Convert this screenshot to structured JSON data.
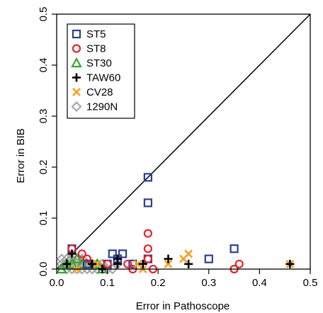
{
  "chart_data": {
    "type": "scatter",
    "xlabel": "Error in Pathoscope",
    "ylabel": "Error in BIB",
    "xlim": [
      0,
      0.5
    ],
    "ylim": [
      0,
      0.5
    ],
    "x_ticks": [
      "0.0",
      "0.1",
      "0.2",
      "0.3",
      "0.4",
      "0.5"
    ],
    "y_ticks": [
      "0.0",
      "0.1",
      "0.2",
      "0.3",
      "0.4",
      "0.5"
    ],
    "x_tick_values": [
      0,
      0.1,
      0.2,
      0.3,
      0.4,
      0.5
    ],
    "y_tick_values": [
      0,
      0.1,
      0.2,
      0.3,
      0.4,
      0.5
    ],
    "reference_line": {
      "from": [
        0,
        0
      ],
      "to": [
        0.5,
        0.5
      ]
    },
    "legend_position": "top-left",
    "grid": false,
    "series": [
      {
        "name": "ST5",
        "marker": "square",
        "color": "#2b3f95",
        "points": [
          [
            0.03,
            0.04
          ],
          [
            0.11,
            0.03
          ],
          [
            0.13,
            0.03
          ],
          [
            0.12,
            0.02
          ],
          [
            0.18,
            0.02
          ],
          [
            0.18,
            0.18
          ],
          [
            0.18,
            0.13
          ],
          [
            0.3,
            0.02
          ],
          [
            0.35,
            0.04
          ],
          [
            0.1,
            0.01
          ],
          [
            0.06,
            0.01
          ],
          [
            0.15,
            0.01
          ]
        ]
      },
      {
        "name": "ST8",
        "marker": "circle",
        "color": "#e3242b",
        "points": [
          [
            0.03,
            0.04
          ],
          [
            0.05,
            0.03
          ],
          [
            0.18,
            0.07
          ],
          [
            0.18,
            0.04
          ],
          [
            0.18,
            0.02
          ],
          [
            0.19,
            0.0
          ],
          [
            0.36,
            0.01
          ],
          [
            0.35,
            0.0
          ],
          [
            0.14,
            0.01
          ],
          [
            0.15,
            0.0
          ],
          [
            0.06,
            0.02
          ],
          [
            0.1,
            0.01
          ]
        ]
      },
      {
        "name": "ST30",
        "marker": "triangle",
        "color": "#3aa335",
        "points": [
          [
            0.02,
            0.01
          ],
          [
            0.03,
            0.01
          ],
          [
            0.04,
            0.02
          ],
          [
            0.05,
            0.01
          ],
          [
            0.06,
            0.01
          ],
          [
            0.08,
            0.01
          ],
          [
            0.09,
            0.0
          ],
          [
            0.01,
            0.0
          ]
        ]
      },
      {
        "name": "TAW60",
        "marker": "plus",
        "color": "#000000",
        "points": [
          [
            0.03,
            0.03
          ],
          [
            0.12,
            0.02
          ],
          [
            0.12,
            0.01
          ],
          [
            0.17,
            0.01
          ],
          [
            0.22,
            0.02
          ],
          [
            0.26,
            0.01
          ],
          [
            0.07,
            0.01
          ],
          [
            0.09,
            0.0
          ],
          [
            0.46,
            0.01
          ],
          [
            0.02,
            0.01
          ]
        ]
      },
      {
        "name": "CV28",
        "marker": "x",
        "color": "#f5a020",
        "points": [
          [
            0.16,
            0.01
          ],
          [
            0.17,
            0.0
          ],
          [
            0.22,
            0.01
          ],
          [
            0.25,
            0.02
          ],
          [
            0.26,
            0.03
          ],
          [
            0.46,
            0.01
          ],
          [
            0.08,
            0.01
          ],
          [
            0.04,
            0.0
          ]
        ]
      },
      {
        "name": "1290N",
        "marker": "diamond",
        "color": "#a8a8a8",
        "points": [
          [
            0.01,
            0.02
          ],
          [
            0.01,
            0.01
          ],
          [
            0.02,
            0.02
          ],
          [
            0.02,
            0.01
          ],
          [
            0.02,
            0.0
          ],
          [
            0.03,
            0.02
          ],
          [
            0.03,
            0.01
          ],
          [
            0.03,
            0.0
          ],
          [
            0.04,
            0.02
          ],
          [
            0.04,
            0.01
          ],
          [
            0.04,
            0.0
          ],
          [
            0.05,
            0.02
          ],
          [
            0.05,
            0.01
          ],
          [
            0.05,
            0.0
          ],
          [
            0.06,
            0.01
          ],
          [
            0.06,
            0.0
          ],
          [
            0.07,
            0.01
          ],
          [
            0.07,
            0.0
          ],
          [
            0.08,
            0.01
          ],
          [
            0.08,
            0.0
          ],
          [
            0.09,
            0.01
          ],
          [
            0.1,
            0.0
          ],
          [
            0.11,
            0.0
          ],
          [
            0.12,
            0.01
          ]
        ]
      }
    ]
  }
}
